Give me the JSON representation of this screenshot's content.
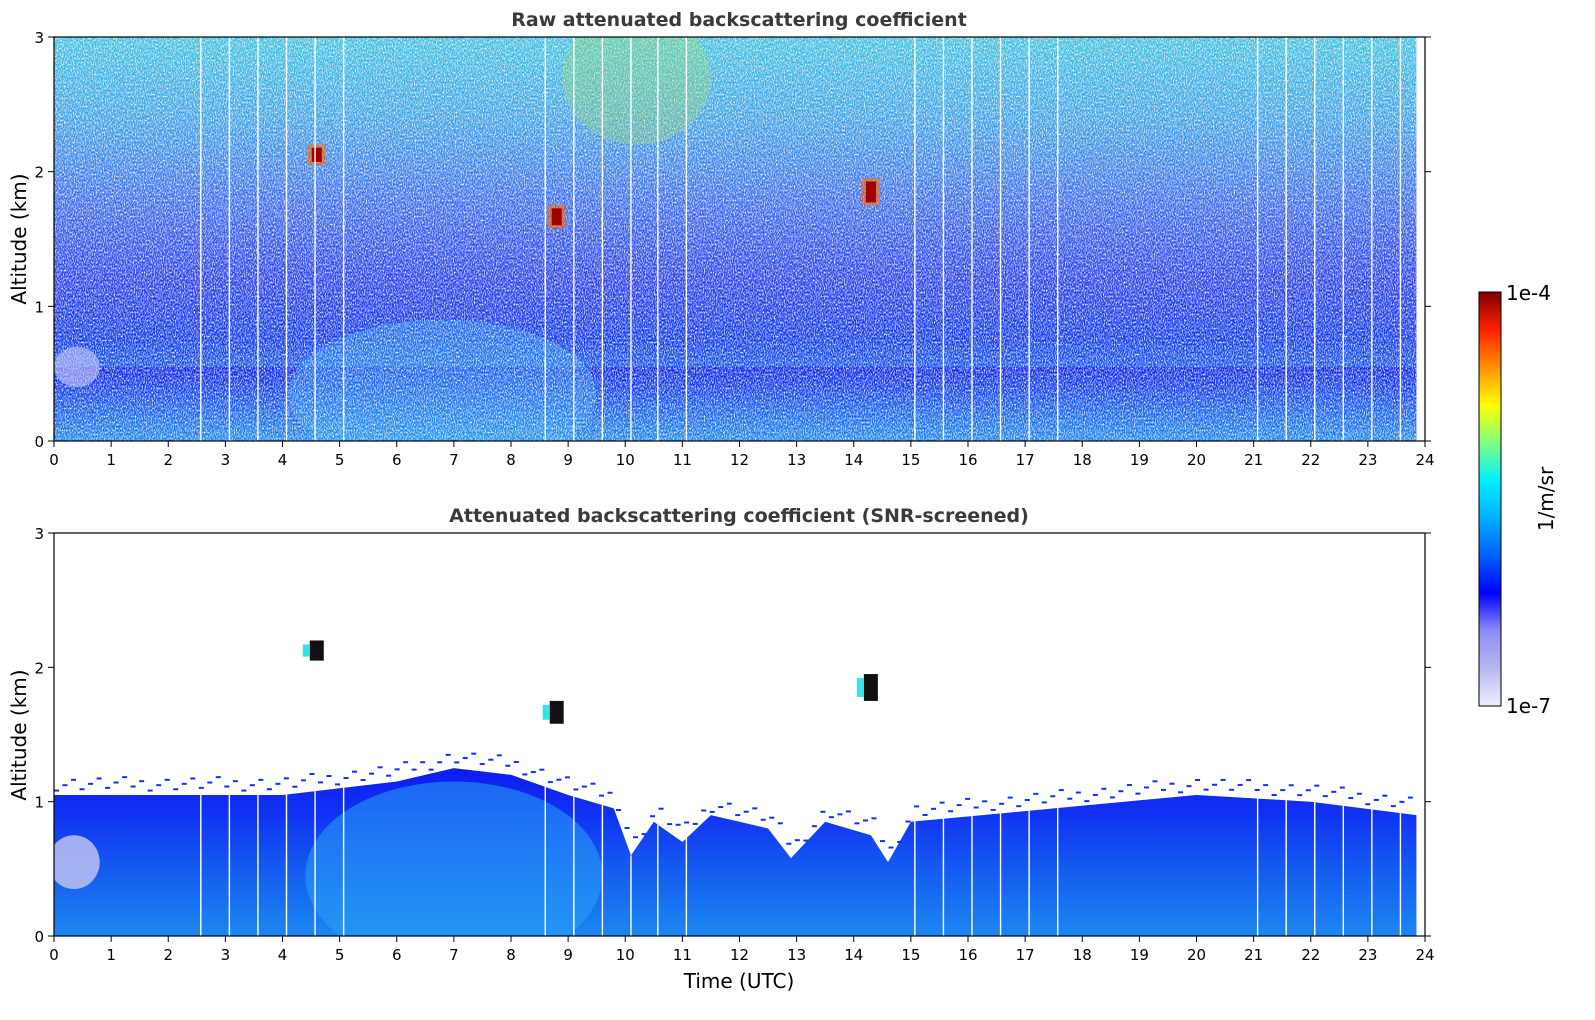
{
  "chart_data": [
    {
      "type": "heatmap",
      "title": "Raw attenuated backscattering coefficient",
      "ylabel": "Altitude (km)",
      "xlabel": "",
      "xlim": [
        0,
        24
      ],
      "ylim": [
        0,
        3
      ],
      "xticks": [
        0,
        1,
        2,
        3,
        4,
        5,
        6,
        7,
        8,
        9,
        10,
        11,
        12,
        13,
        14,
        15,
        16,
        17,
        18,
        19,
        20,
        21,
        22,
        23,
        24
      ],
      "yticks": [
        0,
        1,
        2,
        3
      ],
      "data_end_hour": 23.85,
      "gap_times_utc": [
        2.57,
        3.07,
        3.57,
        4.07,
        4.57,
        5.07,
        8.6,
        9.1,
        9.6,
        10.1,
        10.57,
        11.07,
        15.07,
        15.57,
        16.07,
        16.57,
        17.07,
        17.57,
        21.07,
        21.57,
        22.07,
        22.57,
        23.07,
        23.57
      ],
      "features": [
        {
          "name": "cloud",
          "time": 4.6,
          "alt_min": 2.05,
          "alt_max": 2.2,
          "level": "high"
        },
        {
          "name": "cloud",
          "time": 8.8,
          "alt_min": 1.58,
          "alt_max": 1.75,
          "level": "high"
        },
        {
          "name": "cloud",
          "time": 14.3,
          "alt_min": 1.75,
          "alt_max": 1.95,
          "level": "high"
        }
      ]
    },
    {
      "type": "heatmap",
      "title": "Attenuated backscattering coefficient (SNR-screened)",
      "ylabel": "Altitude (km)",
      "xlabel": "Time (UTC)",
      "xlim": [
        0,
        24
      ],
      "ylim": [
        0,
        3
      ],
      "xticks": [
        0,
        1,
        2,
        3,
        4,
        5,
        6,
        7,
        8,
        9,
        10,
        11,
        12,
        13,
        14,
        15,
        16,
        17,
        18,
        19,
        20,
        21,
        22,
        23,
        24
      ],
      "yticks": [
        0,
        1,
        2,
        3
      ],
      "boundary_layer_top_km": [
        {
          "time": 0,
          "alt": 1.05
        },
        {
          "time": 2,
          "alt": 1.05
        },
        {
          "time": 4,
          "alt": 1.05
        },
        {
          "time": 6,
          "alt": 1.15
        },
        {
          "time": 7,
          "alt": 1.25
        },
        {
          "time": 8,
          "alt": 1.2
        },
        {
          "time": 9,
          "alt": 1.05
        },
        {
          "time": 9.8,
          "alt": 0.95
        },
        {
          "time": 10.1,
          "alt": 0.6
        },
        {
          "time": 10.5,
          "alt": 0.85
        },
        {
          "time": 11.0,
          "alt": 0.7
        },
        {
          "time": 11.5,
          "alt": 0.9
        },
        {
          "time": 12.5,
          "alt": 0.8
        },
        {
          "time": 12.9,
          "alt": 0.58
        },
        {
          "time": 13.5,
          "alt": 0.85
        },
        {
          "time": 14.3,
          "alt": 0.75
        },
        {
          "time": 14.6,
          "alt": 0.55
        },
        {
          "time": 15.0,
          "alt": 0.85
        },
        {
          "time": 17.5,
          "alt": 0.95
        },
        {
          "time": 20,
          "alt": 1.05
        },
        {
          "time": 22,
          "alt": 1.0
        },
        {
          "time": 23.85,
          "alt": 0.9
        }
      ]
    }
  ],
  "colorbar": {
    "label": "1/m/sr",
    "max_label": "1e-4",
    "min_label": "1e-7",
    "colormap": "jet with light-lavender low end",
    "colors": [
      "#eeeeff",
      "#b8b8f0",
      "#8c8cf4",
      "#0000ff",
      "#0060ff",
      "#00b0ff",
      "#00f0ff",
      "#80ff80",
      "#ffff00",
      "#ff9000",
      "#ff2000",
      "#800000"
    ]
  }
}
